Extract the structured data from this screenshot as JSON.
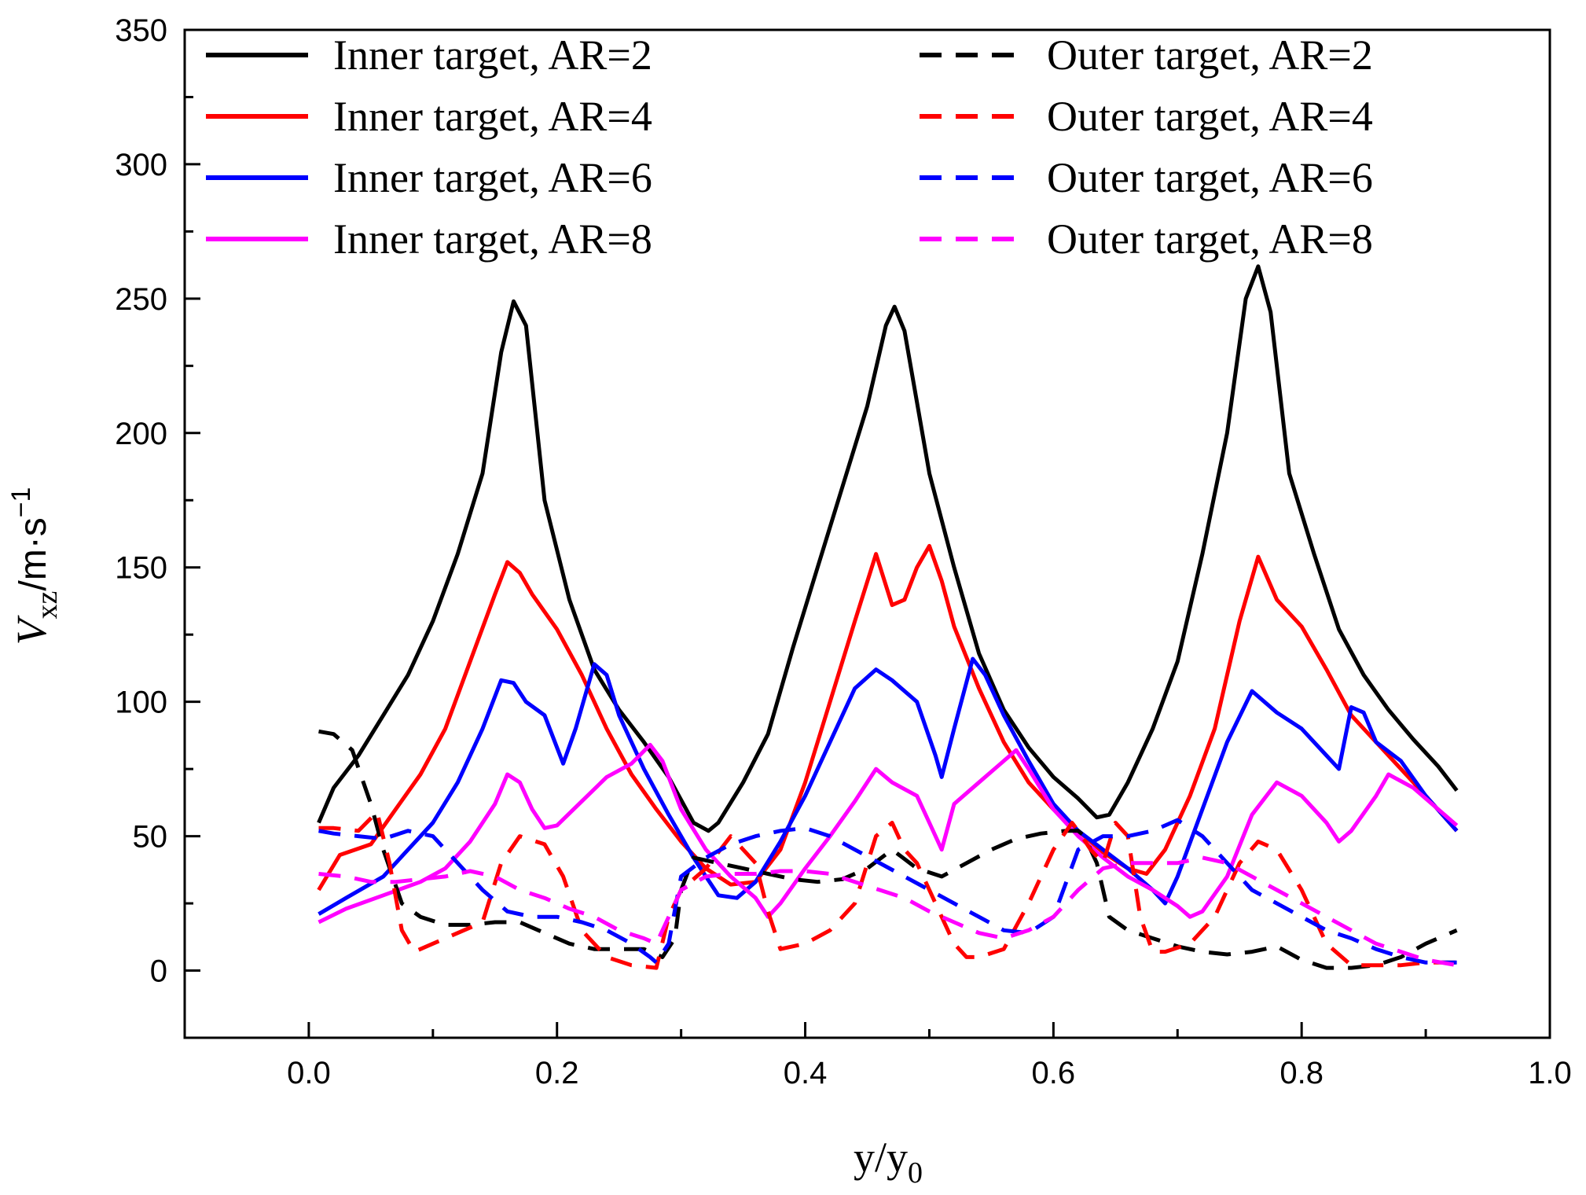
{
  "chart_data": {
    "type": "line",
    "title": "",
    "xlabel": "y/y0",
    "xlabel_main": "y/y",
    "xlabel_sub": "0",
    "ylabel_main": "V",
    "ylabel_sub": "xz",
    "ylabel_unit": "/m·s",
    "ylabel_sup": "−1",
    "xlim": [
      -0.1,
      1.0
    ],
    "ylim": [
      -25,
      350
    ],
    "xticks": [
      0.0,
      0.2,
      0.4,
      0.6,
      0.8,
      1.0
    ],
    "xtick_labels": [
      "0.0",
      "0.2",
      "0.4",
      "0.6",
      "0.8",
      "1.0"
    ],
    "yticks": [
      0,
      50,
      100,
      150,
      200,
      250,
      300,
      350
    ],
    "ytick_labels": [
      "0",
      "50",
      "100",
      "150",
      "200",
      "250",
      "300",
      "350"
    ],
    "grid": false,
    "legend_position": "top",
    "series": [
      {
        "name": "Inner target, AR=2",
        "color": "#000000",
        "style": "solid",
        "x": [
          0.008,
          0.02,
          0.04,
          0.06,
          0.08,
          0.1,
          0.12,
          0.14,
          0.155,
          0.165,
          0.175,
          0.19,
          0.21,
          0.23,
          0.25,
          0.27,
          0.29,
          0.31,
          0.322,
          0.33,
          0.35,
          0.37,
          0.39,
          0.41,
          0.43,
          0.45,
          0.465,
          0.472,
          0.48,
          0.5,
          0.52,
          0.54,
          0.56,
          0.58,
          0.6,
          0.62,
          0.635,
          0.645,
          0.66,
          0.68,
          0.7,
          0.72,
          0.74,
          0.755,
          0.765,
          0.775,
          0.79,
          0.81,
          0.83,
          0.85,
          0.87,
          0.89,
          0.91,
          0.925
        ],
        "y": [
          55,
          68,
          80,
          95,
          110,
          130,
          155,
          185,
          230,
          249,
          240,
          175,
          138,
          112,
          97,
          85,
          72,
          55,
          52,
          55,
          70,
          88,
          120,
          150,
          180,
          210,
          240,
          247,
          238,
          185,
          150,
          118,
          97,
          83,
          72,
          64,
          57,
          58,
          70,
          90,
          115,
          155,
          200,
          250,
          262,
          245,
          185,
          155,
          127,
          110,
          97,
          86,
          76,
          67
        ]
      },
      {
        "name": "Inner target, AR=4",
        "color": "#ff0000",
        "style": "solid",
        "x": [
          0.008,
          0.025,
          0.05,
          0.07,
          0.09,
          0.11,
          0.13,
          0.15,
          0.16,
          0.17,
          0.18,
          0.2,
          0.22,
          0.24,
          0.26,
          0.28,
          0.3,
          0.32,
          0.34,
          0.36,
          0.38,
          0.4,
          0.42,
          0.44,
          0.457,
          0.47,
          0.48,
          0.49,
          0.5,
          0.51,
          0.52,
          0.54,
          0.56,
          0.58,
          0.6,
          0.62,
          0.64,
          0.66,
          0.675,
          0.69,
          0.71,
          0.73,
          0.75,
          0.765,
          0.78,
          0.8,
          0.82,
          0.84,
          0.86,
          0.88,
          0.9,
          0.925
        ],
        "y": [
          30,
          43,
          47,
          60,
          73,
          90,
          115,
          140,
          152,
          148,
          140,
          127,
          110,
          90,
          73,
          60,
          48,
          38,
          32,
          33,
          45,
          70,
          100,
          130,
          155,
          136,
          138,
          150,
          158,
          145,
          128,
          105,
          85,
          70,
          60,
          52,
          44,
          38,
          36,
          45,
          65,
          90,
          130,
          154,
          138,
          128,
          112,
          95,
          85,
          75,
          65,
          52
        ]
      },
      {
        "name": "Inner target, AR=6",
        "color": "#0000ff",
        "style": "solid",
        "x": [
          0.008,
          0.03,
          0.06,
          0.08,
          0.1,
          0.12,
          0.14,
          0.155,
          0.165,
          0.175,
          0.19,
          0.205,
          0.215,
          0.23,
          0.24,
          0.25,
          0.27,
          0.29,
          0.31,
          0.33,
          0.345,
          0.36,
          0.38,
          0.4,
          0.42,
          0.44,
          0.457,
          0.47,
          0.49,
          0.505,
          0.51,
          0.52,
          0.535,
          0.545,
          0.56,
          0.58,
          0.6,
          0.62,
          0.64,
          0.66,
          0.68,
          0.69,
          0.7,
          0.72,
          0.74,
          0.76,
          0.78,
          0.8,
          0.82,
          0.83,
          0.84,
          0.85,
          0.86,
          0.88,
          0.9,
          0.925
        ],
        "y": [
          21,
          27,
          35,
          45,
          55,
          70,
          90,
          108,
          107,
          100,
          95,
          77,
          90,
          114,
          110,
          95,
          75,
          58,
          42,
          28,
          27,
          33,
          48,
          65,
          85,
          105,
          112,
          108,
          100,
          80,
          72,
          90,
          116,
          110,
          95,
          78,
          62,
          52,
          45,
          38,
          30,
          25,
          35,
          60,
          85,
          104,
          96,
          90,
          80,
          75,
          98,
          96,
          85,
          78,
          65,
          52
        ]
      },
      {
        "name": "Inner target, AR=8",
        "color": "#ff00ff",
        "style": "solid",
        "x": [
          0.008,
          0.03,
          0.06,
          0.09,
          0.11,
          0.13,
          0.15,
          0.16,
          0.17,
          0.18,
          0.19,
          0.2,
          0.22,
          0.24,
          0.26,
          0.275,
          0.285,
          0.3,
          0.32,
          0.34,
          0.36,
          0.37,
          0.38,
          0.4,
          0.42,
          0.44,
          0.457,
          0.47,
          0.49,
          0.5,
          0.51,
          0.52,
          0.54,
          0.56,
          0.57,
          0.58,
          0.6,
          0.62,
          0.64,
          0.66,
          0.68,
          0.7,
          0.71,
          0.72,
          0.74,
          0.76,
          0.78,
          0.8,
          0.82,
          0.83,
          0.84,
          0.86,
          0.87,
          0.89,
          0.91,
          0.925
        ],
        "y": [
          18,
          23,
          28,
          33,
          38,
          48,
          62,
          73,
          70,
          60,
          53,
          54,
          63,
          72,
          77,
          84,
          78,
          60,
          45,
          35,
          27,
          20,
          25,
          38,
          50,
          63,
          75,
          70,
          65,
          55,
          45,
          62,
          70,
          78,
          82,
          75,
          60,
          50,
          42,
          35,
          30,
          24,
          20,
          22,
          35,
          58,
          70,
          65,
          55,
          48,
          52,
          65,
          73,
          68,
          60,
          54
        ]
      },
      {
        "name": "Outer target, AR=2",
        "color": "#000000",
        "style": "dashed",
        "x": [
          0.008,
          0.02,
          0.035,
          0.05,
          0.06,
          0.075,
          0.09,
          0.11,
          0.13,
          0.15,
          0.17,
          0.19,
          0.21,
          0.23,
          0.25,
          0.27,
          0.285,
          0.295,
          0.3,
          0.31,
          0.33,
          0.35,
          0.37,
          0.39,
          0.41,
          0.43,
          0.45,
          0.47,
          0.49,
          0.51,
          0.53,
          0.55,
          0.57,
          0.59,
          0.61,
          0.62,
          0.625,
          0.635,
          0.645,
          0.66,
          0.68,
          0.7,
          0.72,
          0.74,
          0.76,
          0.78,
          0.8,
          0.82,
          0.84,
          0.86,
          0.88,
          0.9,
          0.925
        ],
        "y": [
          89,
          88,
          82,
          62,
          45,
          25,
          20,
          17,
          17,
          18,
          18,
          14,
          10,
          8,
          8,
          8,
          5,
          12,
          30,
          42,
          40,
          38,
          36,
          34,
          33,
          34,
          38,
          45,
          38,
          35,
          40,
          45,
          49,
          51,
          52,
          52,
          50,
          40,
          20,
          15,
          12,
          9,
          7,
          6,
          7,
          9,
          4,
          1,
          1,
          2,
          5,
          10,
          15
        ]
      },
      {
        "name": "Outer target, AR=4",
        "color": "#ff0000",
        "style": "dashed",
        "x": [
          0.008,
          0.02,
          0.04,
          0.055,
          0.065,
          0.075,
          0.085,
          0.1,
          0.12,
          0.14,
          0.155,
          0.17,
          0.19,
          0.205,
          0.22,
          0.24,
          0.26,
          0.28,
          0.29,
          0.3,
          0.32,
          0.34,
          0.36,
          0.37,
          0.38,
          0.4,
          0.42,
          0.44,
          0.457,
          0.47,
          0.48,
          0.49,
          0.5,
          0.51,
          0.52,
          0.53,
          0.54,
          0.56,
          0.58,
          0.6,
          0.615,
          0.62,
          0.63,
          0.64,
          0.65,
          0.66,
          0.67,
          0.68,
          0.69,
          0.71,
          0.73,
          0.75,
          0.765,
          0.78,
          0.8,
          0.82,
          0.84,
          0.86,
          0.88,
          0.9,
          0.925
        ],
        "y": [
          53,
          53,
          52,
          59,
          40,
          15,
          7,
          10,
          14,
          18,
          40,
          50,
          47,
          35,
          15,
          5,
          2,
          1,
          20,
          30,
          38,
          50,
          40,
          22,
          8,
          10,
          15,
          25,
          50,
          55,
          45,
          40,
          30,
          20,
          10,
          5,
          5,
          8,
          25,
          45,
          55,
          52,
          45,
          40,
          55,
          50,
          20,
          7,
          7,
          10,
          20,
          40,
          48,
          45,
          30,
          10,
          2,
          2,
          2,
          3,
          3
        ]
      },
      {
        "name": "Outer target, AR=6",
        "color": "#0000ff",
        "style": "dashed",
        "x": [
          0.008,
          0.02,
          0.04,
          0.06,
          0.08,
          0.1,
          0.12,
          0.14,
          0.16,
          0.18,
          0.2,
          0.22,
          0.24,
          0.26,
          0.275,
          0.28,
          0.29,
          0.3,
          0.32,
          0.34,
          0.36,
          0.38,
          0.4,
          0.42,
          0.44,
          0.46,
          0.48,
          0.5,
          0.52,
          0.54,
          0.56,
          0.58,
          0.6,
          0.62,
          0.64,
          0.66,
          0.68,
          0.7,
          0.72,
          0.74,
          0.76,
          0.78,
          0.8,
          0.82,
          0.84,
          0.86,
          0.88,
          0.9,
          0.925
        ],
        "y": [
          52,
          51,
          50,
          49,
          52,
          50,
          40,
          30,
          22,
          20,
          20,
          18,
          15,
          10,
          5,
          3,
          10,
          35,
          42,
          47,
          50,
          52,
          53,
          50,
          45,
          40,
          35,
          30,
          25,
          20,
          15,
          14,
          20,
          45,
          50,
          50,
          52,
          56,
          50,
          40,
          30,
          25,
          20,
          15,
          12,
          8,
          5,
          3,
          3
        ]
      },
      {
        "name": "Outer target, AR=8",
        "color": "#ff00ff",
        "style": "dashed",
        "x": [
          0.008,
          0.03,
          0.05,
          0.07,
          0.09,
          0.11,
          0.13,
          0.15,
          0.17,
          0.19,
          0.21,
          0.23,
          0.25,
          0.27,
          0.28,
          0.3,
          0.32,
          0.34,
          0.36,
          0.38,
          0.4,
          0.42,
          0.44,
          0.46,
          0.48,
          0.5,
          0.52,
          0.54,
          0.56,
          0.58,
          0.6,
          0.62,
          0.64,
          0.66,
          0.68,
          0.7,
          0.72,
          0.74,
          0.76,
          0.78,
          0.8,
          0.82,
          0.84,
          0.86,
          0.88,
          0.9,
          0.925
        ],
        "y": [
          36,
          35,
          33,
          33,
          34,
          35,
          37,
          35,
          30,
          27,
          23,
          20,
          15,
          12,
          10,
          30,
          35,
          36,
          36,
          37,
          37,
          36,
          33,
          30,
          27,
          22,
          18,
          14,
          12,
          15,
          20,
          30,
          38,
          40,
          40,
          40,
          42,
          40,
          35,
          30,
          25,
          20,
          15,
          10,
          7,
          4,
          2
        ]
      }
    ]
  }
}
